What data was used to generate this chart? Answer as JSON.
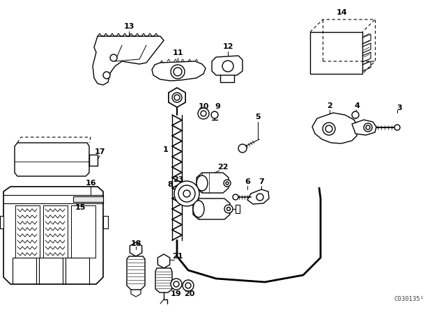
{
  "bg": "#ffffff",
  "fg": "#000000",
  "watermark": "C030135¹",
  "figsize": [
    6.4,
    4.48
  ],
  "dpi": 100
}
